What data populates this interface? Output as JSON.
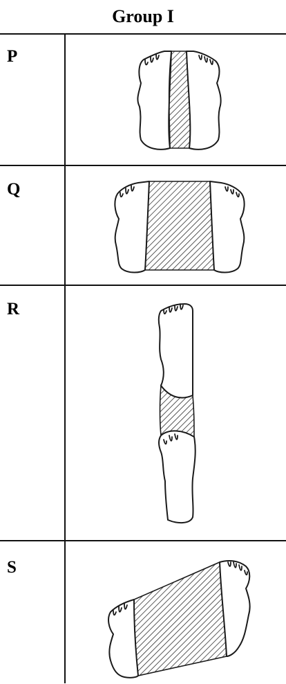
{
  "header": {
    "title": "Group I"
  },
  "rows": [
    {
      "label": "P"
    },
    {
      "label": "Q"
    },
    {
      "label": "R"
    },
    {
      "label": "S"
    }
  ],
  "colors": {
    "line": "#111111",
    "fill": "#ffffff",
    "hatch": "#1a1a1a"
  }
}
